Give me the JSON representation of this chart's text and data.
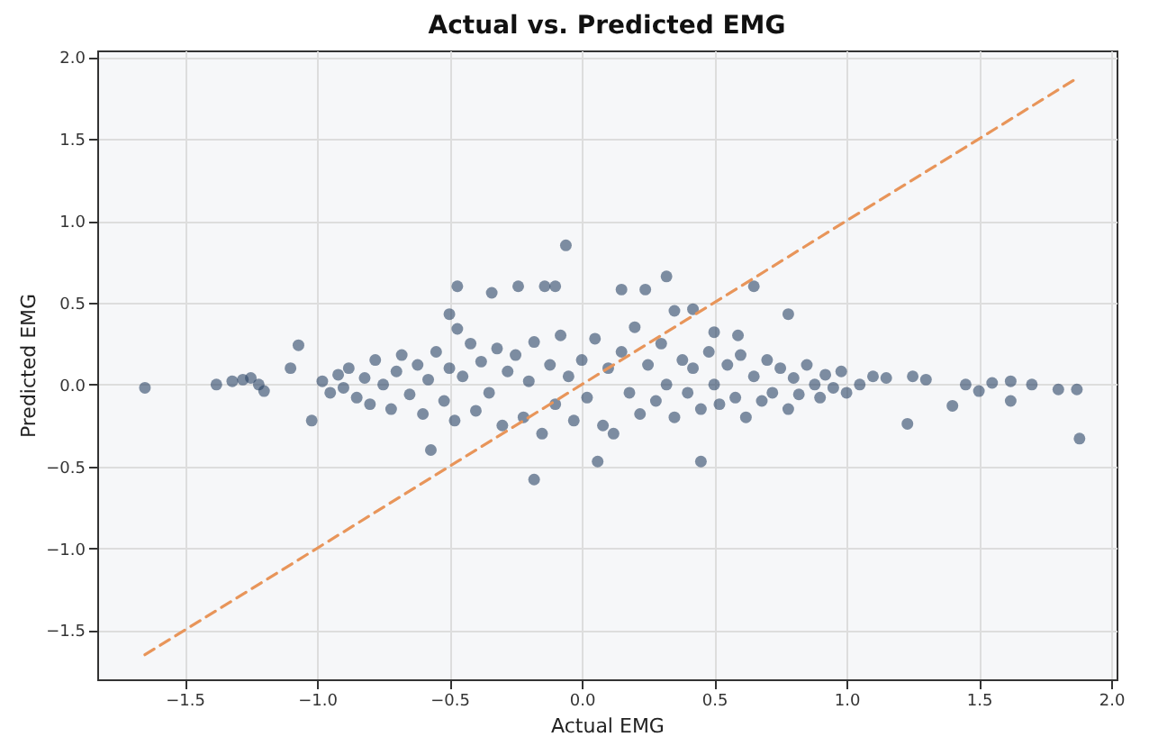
{
  "chart_data": {
    "type": "scatter",
    "title": "Actual vs. Predicted EMG",
    "xlabel": "Actual EMG",
    "ylabel": "Predicted EMG",
    "xlim": [
      -1.83,
      2.02
    ],
    "ylim": [
      -1.8,
      2.04
    ],
    "xticks": [
      {
        "value": -1.5,
        "label": "−1.5"
      },
      {
        "value": -1,
        "label": "−1.0"
      },
      {
        "value": -0.5,
        "label": "−0.5"
      },
      {
        "value": 0,
        "label": "0.0"
      },
      {
        "value": 0.5,
        "label": "0.5"
      },
      {
        "value": 1,
        "label": "1.0"
      },
      {
        "value": 1.5,
        "label": "1.5"
      },
      {
        "value": 2,
        "label": "2.0"
      }
    ],
    "yticks": [
      {
        "value": -1.5,
        "label": "−1.5"
      },
      {
        "value": -1,
        "label": "−1.0"
      },
      {
        "value": -0.5,
        "label": "−0.5"
      },
      {
        "value": 0,
        "label": "0.0"
      },
      {
        "value": 0.5,
        "label": "0.5"
      },
      {
        "value": 1,
        "label": "1.0"
      },
      {
        "value": 1.5,
        "label": "1.5"
      },
      {
        "value": 2,
        "label": "2.0"
      }
    ],
    "grid": true,
    "series": [
      {
        "color": "#2b4565",
        "marker": "circle",
        "x": [
          -1.65,
          -1.38,
          -1.32,
          -1.28,
          -1.25,
          -1.22,
          -1.2,
          -1.1,
          -1.07,
          -1.02,
          -0.47,
          -0.34,
          -0.24,
          -0.14,
          -0.1,
          -0.06,
          -0.5,
          -0.47,
          0.32,
          0.15,
          0.24,
          0.35,
          0.42,
          0.65,
          0.78,
          0.5,
          0.59,
          -0.18,
          0.06,
          0.45,
          -0.57,
          1.23,
          1.4,
          1.88,
          1.8,
          1.87,
          1.5,
          1.62,
          1.62,
          1.7,
          1.55,
          1.45,
          1.3,
          1.25,
          1.15,
          1.1,
          1.05,
          -0.98,
          -0.95,
          -0.92,
          -0.9,
          -0.88,
          -0.85,
          -0.82,
          -0.8,
          -0.78,
          -0.75,
          -0.72,
          -0.7,
          -0.68,
          -0.65,
          -0.62,
          -0.6,
          -0.58,
          -0.55,
          -0.52,
          -0.5,
          -0.48,
          -0.45,
          -0.42,
          -0.4,
          -0.38,
          -0.35,
          -0.32,
          -0.3,
          -0.28,
          -0.25,
          -0.22,
          -0.2,
          -0.18,
          -0.15,
          -0.12,
          -0.1,
          -0.08,
          -0.05,
          -0.03,
          0.0,
          0.02,
          0.05,
          0.08,
          0.1,
          0.12,
          0.15,
          0.18,
          0.2,
          0.22,
          0.25,
          0.28,
          0.3,
          0.32,
          0.35,
          0.38,
          0.4,
          0.42,
          0.45,
          0.48,
          0.5,
          0.52,
          0.55,
          0.58,
          0.6,
          0.62,
          0.65,
          0.68,
          0.7,
          0.72,
          0.75,
          0.78,
          0.8,
          0.82,
          0.85,
          0.88,
          0.9,
          0.92,
          0.95,
          0.98,
          1.0
        ],
        "values": [
          -0.02,
          0.0,
          0.02,
          0.03,
          0.04,
          0.0,
          -0.04,
          0.1,
          0.24,
          -0.22,
          0.6,
          0.56,
          0.6,
          0.6,
          0.6,
          0.85,
          0.43,
          0.34,
          0.66,
          0.58,
          0.58,
          0.45,
          0.46,
          0.6,
          0.43,
          0.32,
          0.3,
          -0.58,
          -0.47,
          -0.47,
          -0.4,
          -0.24,
          -0.13,
          -0.33,
          -0.03,
          -0.03,
          -0.04,
          -0.1,
          0.02,
          0.0,
          0.01,
          0.0,
          0.03,
          0.05,
          0.04,
          0.05,
          0.0,
          0.02,
          -0.05,
          0.06,
          -0.02,
          0.1,
          -0.08,
          0.04,
          -0.12,
          0.15,
          0.0,
          -0.15,
          0.08,
          0.18,
          -0.06,
          0.12,
          -0.18,
          0.03,
          0.2,
          -0.1,
          0.1,
          -0.22,
          0.05,
          0.25,
          -0.16,
          0.14,
          -0.05,
          0.22,
          -0.25,
          0.08,
          0.18,
          -0.2,
          0.02,
          0.26,
          -0.3,
          0.12,
          -0.12,
          0.3,
          0.05,
          -0.22,
          0.15,
          -0.08,
          0.28,
          -0.25,
          0.1,
          -0.3,
          0.2,
          -0.05,
          0.35,
          -0.18,
          0.12,
          -0.1,
          0.25,
          0.0,
          -0.2,
          0.15,
          -0.05,
          0.1,
          -0.15,
          0.2,
          0.0,
          -0.12,
          0.12,
          -0.08,
          0.18,
          -0.2,
          0.05,
          -0.1,
          0.15,
          -0.05,
          0.1,
          -0.15,
          0.04,
          -0.06,
          0.12,
          0.0,
          -0.08,
          0.06,
          -0.02,
          0.08,
          -0.05
        ]
      },
      {
        "type": "line",
        "color": "#e8955a",
        "line_style": "dashed",
        "marker": "none",
        "x": [
          -1.65,
          1.87
        ],
        "values": [
          -1.65,
          1.87
        ]
      }
    ]
  }
}
